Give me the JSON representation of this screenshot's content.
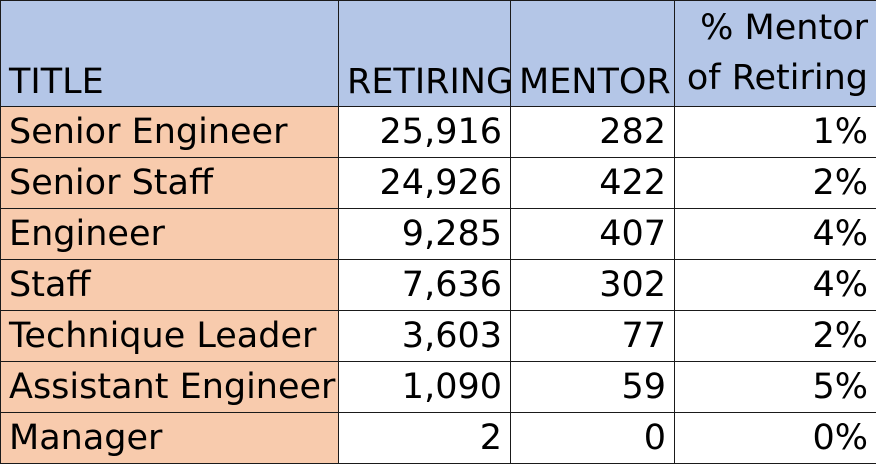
{
  "chart_data": {
    "type": "table",
    "columns": [
      "TITLE",
      "RETIRING",
      "MENTOR",
      "% Mentor of Retiring"
    ],
    "rows": [
      {
        "title": "Senior Engineer",
        "retiring": "25,916",
        "mentor": "282",
        "pct": "1%"
      },
      {
        "title": "Senior Staff",
        "retiring": "24,926",
        "mentor": "422",
        "pct": "2%"
      },
      {
        "title": "Engineer",
        "retiring": "9,285",
        "mentor": "407",
        "pct": "4%"
      },
      {
        "title": "Staff",
        "retiring": "7,636",
        "mentor": "302",
        "pct": "4%"
      },
      {
        "title": "Technique Leader",
        "retiring": "3,603",
        "mentor": "77",
        "pct": "2%"
      },
      {
        "title": "Assistant Engineer",
        "retiring": "1,090",
        "mentor": "59",
        "pct": "5%"
      },
      {
        "title": "Manager",
        "retiring": "2",
        "mentor": "0",
        "pct": "0%"
      }
    ]
  },
  "colors": {
    "header_fill": "#b4c6e7",
    "title_column_fill": "#f8cbad",
    "value_fill": "#ffffff",
    "border": "#1a1a1a"
  }
}
